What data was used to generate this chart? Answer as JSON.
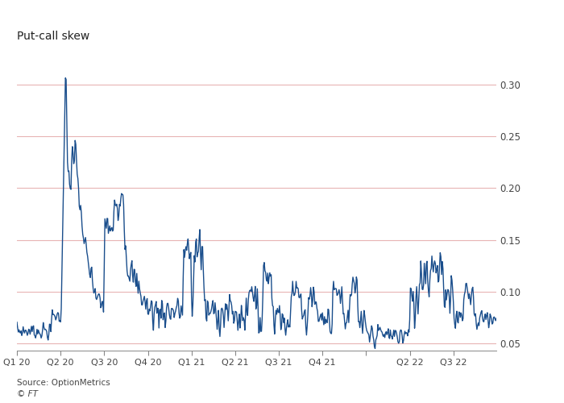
{
  "title": "Put-call skew",
  "ylabel_right_ticks": [
    0.05,
    0.1,
    0.15,
    0.2,
    0.25,
    0.3
  ],
  "x_tick_labels": [
    "Q1 20",
    "Q2 20",
    "Q3 20",
    "Q4 20",
    "Q1 21",
    "Q2 21",
    "Q3 21",
    "Q4 21",
    "",
    "Q2 22",
    "Q3 22"
  ],
  "source": "Source: OptionMetrics",
  "ft_label": "© FT",
  "line_color": "#1a4e8c",
  "background_color": "#ffffff",
  "grid_color": "#e8b4b4",
  "ylim": [
    0.043,
    0.335
  ],
  "line_width": 1.0
}
